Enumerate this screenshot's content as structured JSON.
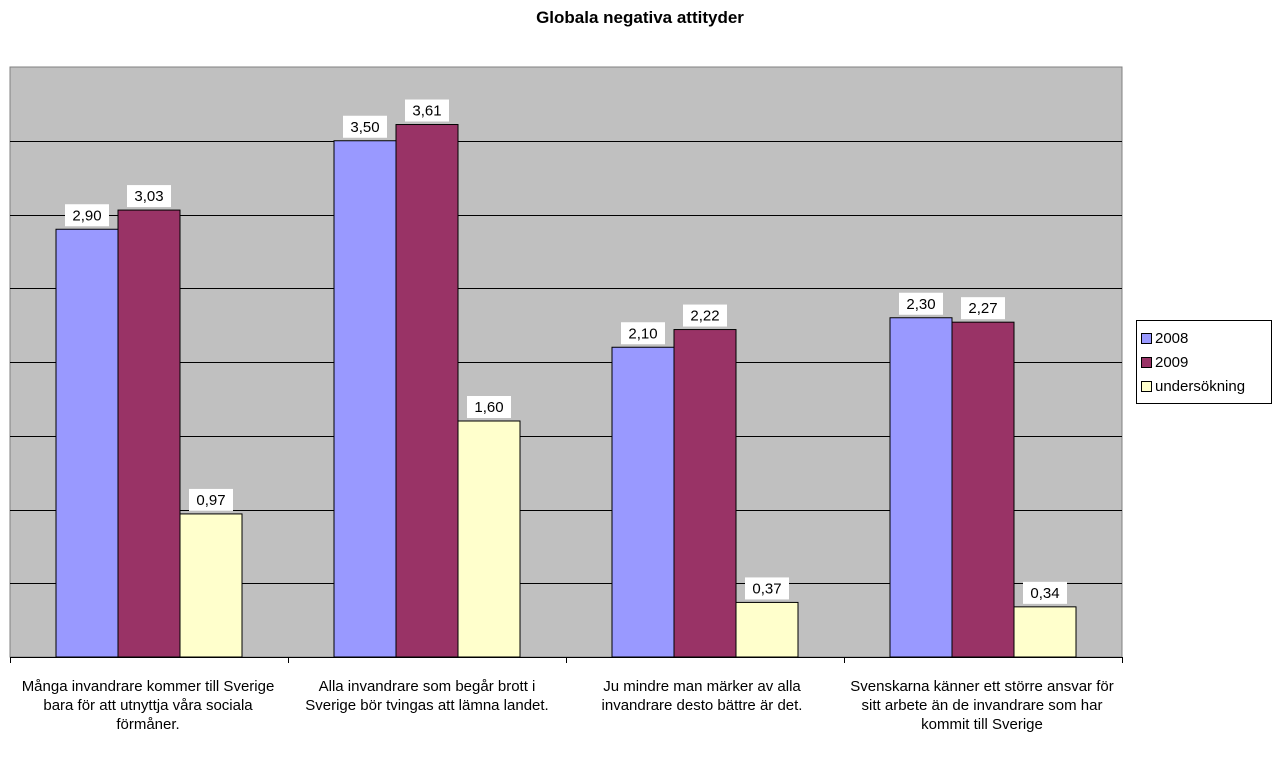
{
  "chart_data": {
    "type": "bar",
    "title": "Globala negativa attityder",
    "categories": [
      "Många invandrare kommer till Sverige bara för att utnyttja våra sociala förmåner.",
      "Alla invandrare som begår brott i Sverige bör tvingas att lämna landet.",
      "Ju mindre man märker av alla invandrare desto bättre är det.",
      "Svenskarna känner ett större ansvar för sitt arbete än de invandrare som har kommit till Sverige"
    ],
    "series": [
      {
        "name": "2008",
        "color": "#9999ff",
        "values": [
          2.9,
          3.5,
          2.1,
          2.3
        ],
        "labels": [
          "2,90",
          "3,50",
          "2,10",
          "2,30"
        ]
      },
      {
        "name": "2009",
        "color": "#993366",
        "values": [
          3.03,
          3.61,
          2.22,
          2.27
        ],
        "labels": [
          "3,03",
          "3,61",
          "2,22",
          "2,27"
        ]
      },
      {
        "name": "undersökning",
        "color": "#ffffcc",
        "values": [
          0.97,
          1.6,
          0.37,
          0.34
        ],
        "labels": [
          "0,97",
          "1,60",
          "0,37",
          "0,34"
        ]
      }
    ],
    "ylim": [
      0,
      4
    ],
    "grid": true,
    "legend": "right",
    "plot_background": "#c0c0c0"
  }
}
